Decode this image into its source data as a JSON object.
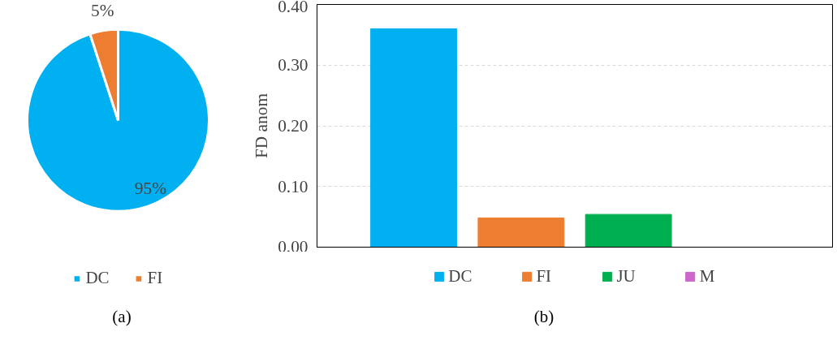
{
  "chart_data": [
    {
      "type": "pie",
      "categories": [
        "DC",
        "FI"
      ],
      "values": [
        95,
        5
      ],
      "colors": [
        "#00b0f0",
        "#ed7d31"
      ],
      "value_labels": [
        "95%",
        "5%"
      ],
      "legend": "bottom",
      "annotations": [
        "(a)"
      ]
    },
    {
      "type": "bar",
      "ylabel": "FD anom",
      "categories": [
        null,
        null,
        null,
        null
      ],
      "series": [
        {
          "name": "DC",
          "color": "#00b0f0",
          "values": [
            0.36,
            null,
            null,
            null
          ]
        },
        {
          "name": "FI",
          "color": "#ed7d31",
          "values": [
            null,
            0.048,
            null,
            null
          ]
        },
        {
          "name": "JU",
          "color": "#00b050",
          "values": [
            null,
            null,
            0.054,
            null
          ]
        },
        {
          "name": "M",
          "color": "#cc66cc",
          "values": [
            null,
            null,
            null,
            0
          ]
        }
      ],
      "ylim": [
        0,
        0.4
      ],
      "yticks": [
        {
          "value": 0,
          "label": "0.00"
        },
        {
          "value": 0.1,
          "label": "0.10"
        },
        {
          "value": 0.2,
          "label": "0.20"
        },
        {
          "value": 0.3,
          "label": "0.30"
        },
        {
          "value": 0.4,
          "label": "0.40"
        }
      ],
      "grid": "y",
      "legend": "bottom",
      "annotations": [
        "(b)"
      ]
    }
  ]
}
